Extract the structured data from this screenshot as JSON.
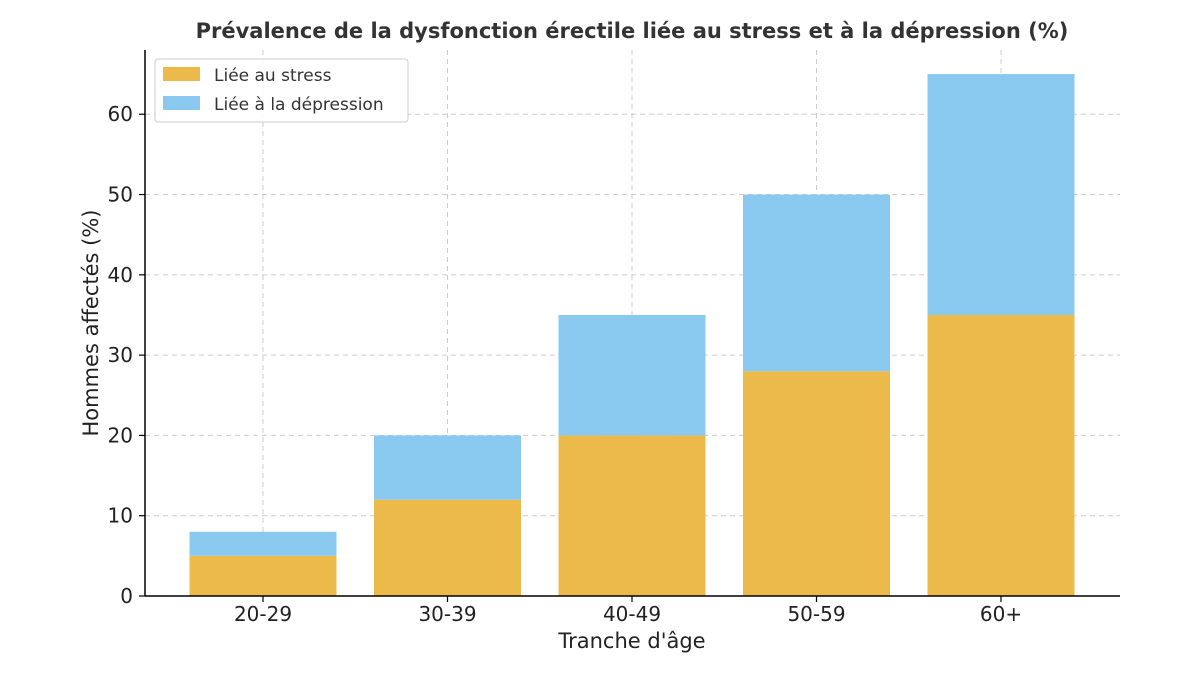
{
  "chart_data": {
    "type": "bar",
    "stacked": true,
    "title": "Prévalence de la dysfonction érectile liée au stress et à la dépression (%)",
    "xlabel": "Tranche d'âge",
    "ylabel": "Hommes affectés (%)",
    "categories": [
      "20-29",
      "30-39",
      "40-49",
      "50-59",
      "60+"
    ],
    "series": [
      {
        "name": "Liée au stress",
        "values": [
          5,
          12,
          20,
          28,
          35
        ],
        "color": "#ecb94b"
      },
      {
        "name": "Liée à la dépression",
        "values": [
          3,
          8,
          15,
          22,
          30
        ],
        "color": "#89c9ef"
      }
    ],
    "ylim": [
      0,
      68
    ],
    "yticks": [
      "0",
      "10",
      "20",
      "30",
      "40",
      "50",
      "60"
    ],
    "grid": true,
    "legend_position": "top-left"
  }
}
